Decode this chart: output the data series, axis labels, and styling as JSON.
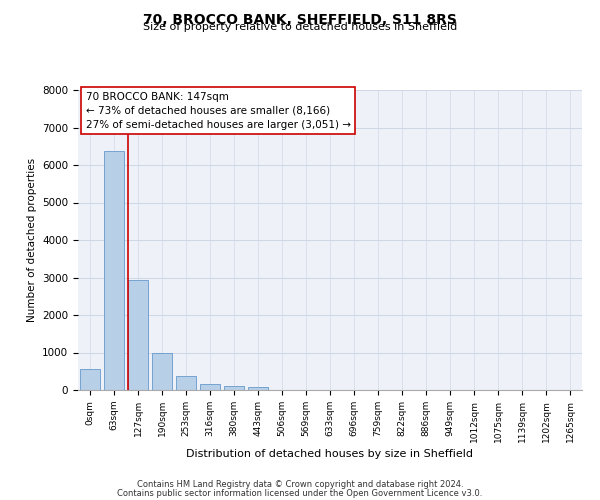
{
  "title": "70, BROCCO BANK, SHEFFIELD, S11 8RS",
  "subtitle": "Size of property relative to detached houses in Sheffield",
  "xlabel": "Distribution of detached houses by size in Sheffield",
  "ylabel": "Number of detached properties",
  "bin_labels": [
    "0sqm",
    "63sqm",
    "127sqm",
    "190sqm",
    "253sqm",
    "316sqm",
    "380sqm",
    "443sqm",
    "506sqm",
    "569sqm",
    "633sqm",
    "696sqm",
    "759sqm",
    "822sqm",
    "886sqm",
    "949sqm",
    "1012sqm",
    "1075sqm",
    "1139sqm",
    "1202sqm",
    "1265sqm"
  ],
  "bar_values": [
    560,
    6380,
    2930,
    990,
    380,
    170,
    110,
    90,
    0,
    0,
    0,
    0,
    0,
    0,
    0,
    0,
    0,
    0,
    0,
    0,
    0
  ],
  "bar_color": "#b8cfe8",
  "bar_edge_color": "#6699cc",
  "vline_x": 2,
  "annotation_title": "70 BROCCO BANK: 147sqm",
  "annotation_line1": "← 73% of detached houses are smaller (8,166)",
  "annotation_line2": "27% of semi-detached houses are larger (3,051) →",
  "vline_color": "#cc0000",
  "ylim": [
    0,
    8000
  ],
  "yticks": [
    0,
    1000,
    2000,
    3000,
    4000,
    5000,
    6000,
    7000,
    8000
  ],
  "grid_color": "#d0d8e8",
  "bg_color": "#eef2f8",
  "footer1": "Contains HM Land Registry data © Crown copyright and database right 2024.",
  "footer2": "Contains public sector information licensed under the Open Government Licence v3.0."
}
